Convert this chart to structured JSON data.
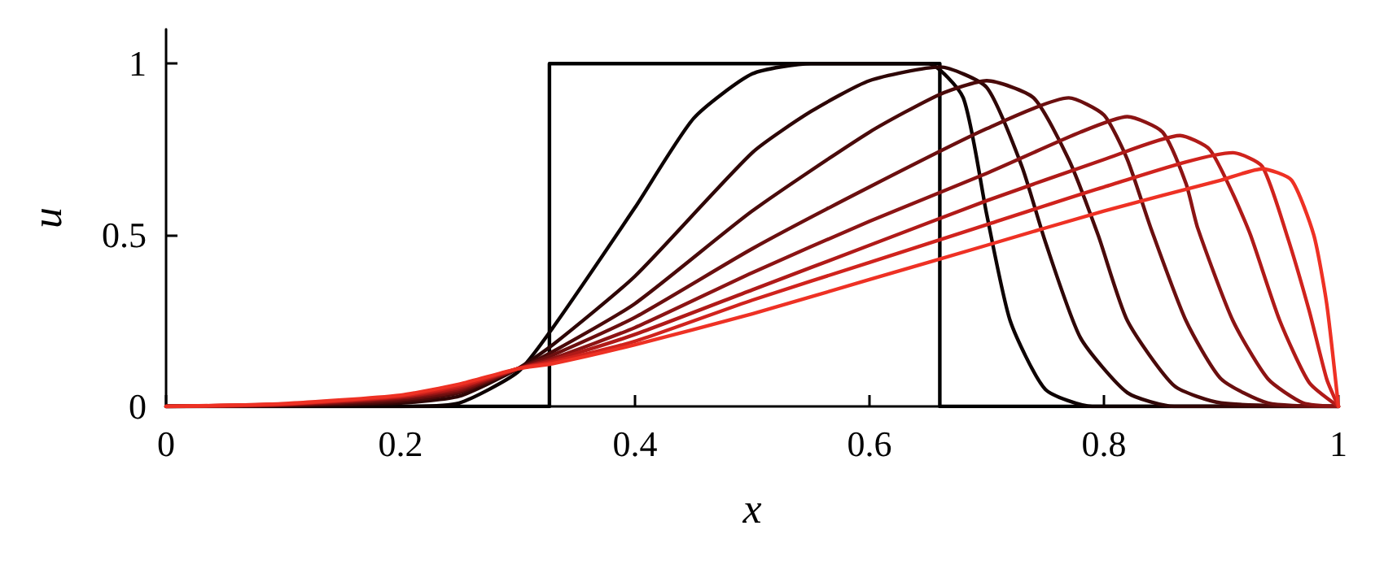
{
  "chart_data": {
    "type": "line",
    "xlabel": "x",
    "ylabel": "u",
    "xlim": [
      0,
      1
    ],
    "ylim": [
      0,
      1.1
    ],
    "xticks": [
      0,
      0.2,
      0.4,
      0.6,
      0.8,
      1
    ],
    "yticks": [
      0,
      0.5,
      1
    ],
    "grid": false,
    "marker": "none",
    "line_style": "solid",
    "series": [
      {
        "type": "step",
        "color": "#000000",
        "x": [
          0,
          0.327,
          0.327,
          0.66,
          0.66,
          1
        ],
        "values": [
          0,
          0,
          1,
          1,
          0,
          0
        ]
      },
      {
        "color": "#0d0202",
        "x": [
          0,
          0.1,
          0.2,
          0.25,
          0.3,
          0.33,
          0.4,
          0.45,
          0.5,
          0.55,
          0.65,
          0.68,
          0.7,
          0.72,
          0.75,
          0.79,
          1
        ],
        "values": [
          0,
          0,
          0,
          0.01,
          0.1,
          0.23,
          0.58,
          0.84,
          0.97,
          1,
          1,
          0.9,
          0.56,
          0.25,
          0.05,
          0,
          0
        ]
      },
      {
        "color": "#2e0606",
        "x": [
          0,
          0.1,
          0.2,
          0.25,
          0.3,
          0.33,
          0.4,
          0.5,
          0.55,
          0.6,
          0.66,
          0.7,
          0.73,
          0.75,
          0.78,
          0.82,
          0.86,
          1
        ],
        "values": [
          0,
          0.002,
          0.01,
          0.03,
          0.11,
          0.18,
          0.38,
          0.74,
          0.86,
          0.95,
          0.99,
          0.93,
          0.7,
          0.48,
          0.2,
          0.04,
          0,
          0
        ]
      },
      {
        "color": "#4a0a0a",
        "x": [
          0,
          0.1,
          0.2,
          0.25,
          0.3,
          0.33,
          0.4,
          0.5,
          0.6,
          0.66,
          0.7,
          0.74,
          0.77,
          0.795,
          0.82,
          0.86,
          0.9,
          1
        ],
        "values": [
          0,
          0.003,
          0.015,
          0.04,
          0.11,
          0.16,
          0.3,
          0.57,
          0.8,
          0.91,
          0.95,
          0.9,
          0.72,
          0.5,
          0.25,
          0.06,
          0.01,
          0
        ]
      },
      {
        "color": "#6b0f0f",
        "x": [
          0,
          0.1,
          0.2,
          0.25,
          0.3,
          0.33,
          0.4,
          0.5,
          0.6,
          0.7,
          0.77,
          0.8,
          0.82,
          0.84,
          0.87,
          0.9,
          0.94,
          1
        ],
        "values": [
          0,
          0.004,
          0.02,
          0.045,
          0.11,
          0.15,
          0.26,
          0.46,
          0.64,
          0.81,
          0.9,
          0.85,
          0.72,
          0.52,
          0.25,
          0.08,
          0.01,
          0
        ]
      },
      {
        "color": "#8c1414",
        "x": [
          0,
          0.1,
          0.2,
          0.25,
          0.3,
          0.33,
          0.4,
          0.5,
          0.6,
          0.7,
          0.78,
          0.82,
          0.85,
          0.87,
          0.88,
          0.91,
          0.94,
          0.97,
          1
        ],
        "values": [
          0,
          0.005,
          0.025,
          0.05,
          0.11,
          0.14,
          0.23,
          0.39,
          0.54,
          0.68,
          0.8,
          0.845,
          0.8,
          0.65,
          0.52,
          0.25,
          0.08,
          0.01,
          0
        ]
      },
      {
        "color": "#b01a18",
        "x": [
          0,
          0.1,
          0.2,
          0.25,
          0.3,
          0.33,
          0.4,
          0.5,
          0.6,
          0.7,
          0.8,
          0.865,
          0.89,
          0.91,
          0.925,
          0.95,
          0.975,
          1
        ],
        "values": [
          0,
          0.006,
          0.028,
          0.055,
          0.11,
          0.135,
          0.21,
          0.34,
          0.47,
          0.6,
          0.72,
          0.79,
          0.75,
          0.62,
          0.5,
          0.25,
          0.07,
          0
        ]
      },
      {
        "color": "#d0231d",
        "x": [
          0,
          0.1,
          0.2,
          0.25,
          0.3,
          0.33,
          0.4,
          0.5,
          0.6,
          0.7,
          0.8,
          0.91,
          0.935,
          0.956,
          0.975,
          0.99,
          1
        ],
        "values": [
          0,
          0.007,
          0.03,
          0.06,
          0.11,
          0.13,
          0.19,
          0.31,
          0.42,
          0.53,
          0.64,
          0.74,
          0.7,
          0.5,
          0.28,
          0.08,
          0
        ]
      },
      {
        "color": "#ee3124",
        "x": [
          0,
          0.1,
          0.2,
          0.25,
          0.3,
          0.33,
          0.4,
          0.5,
          0.6,
          0.7,
          0.8,
          0.9,
          0.935,
          0.96,
          0.979,
          0.99,
          1
        ],
        "values": [
          0,
          0.008,
          0.033,
          0.065,
          0.11,
          0.125,
          0.18,
          0.27,
          0.37,
          0.47,
          0.57,
          0.66,
          0.693,
          0.66,
          0.5,
          0.3,
          0
        ]
      }
    ]
  }
}
